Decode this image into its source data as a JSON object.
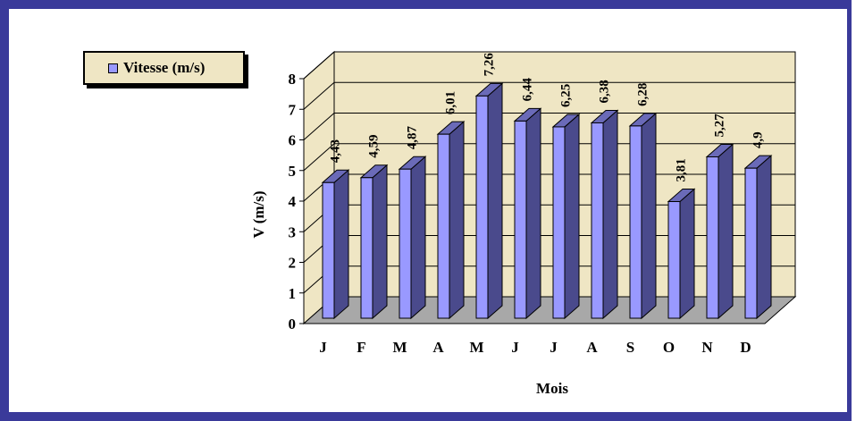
{
  "chart_data": {
    "type": "bar",
    "title": "",
    "xlabel": "Mois",
    "ylabel": "V (m/s)",
    "categories": [
      "J",
      "F",
      "M",
      "A",
      "M",
      "J",
      "J",
      "A",
      "S",
      "O",
      "N",
      "D"
    ],
    "series": [
      {
        "name": "Vitesse (m/s)",
        "values": [
          4.43,
          4.59,
          4.87,
          6.01,
          7.26,
          6.44,
          6.25,
          6.38,
          6.28,
          3.81,
          5.27,
          4.9
        ],
        "value_labels": [
          "4,43",
          "4,59",
          "4,87",
          "6,01",
          "7,26",
          "6,44",
          "6,25",
          "6,38",
          "6,28",
          "3,81",
          "5,27",
          "4,9"
        ]
      }
    ],
    "y_ticks": [
      "0",
      "1",
      "2",
      "3",
      "4",
      "5",
      "6",
      "7",
      "8"
    ],
    "ylim": [
      0,
      8
    ],
    "grid": true,
    "legend_position": "top-left",
    "style": "3d",
    "colors": {
      "bar_front": "#9999ff",
      "bar_side": "#4a4a8c",
      "bar_top": "#6a6ab8",
      "wall": "#efe6c4",
      "floor": "#a8a8a8",
      "frame": "#3a3a9a"
    }
  }
}
